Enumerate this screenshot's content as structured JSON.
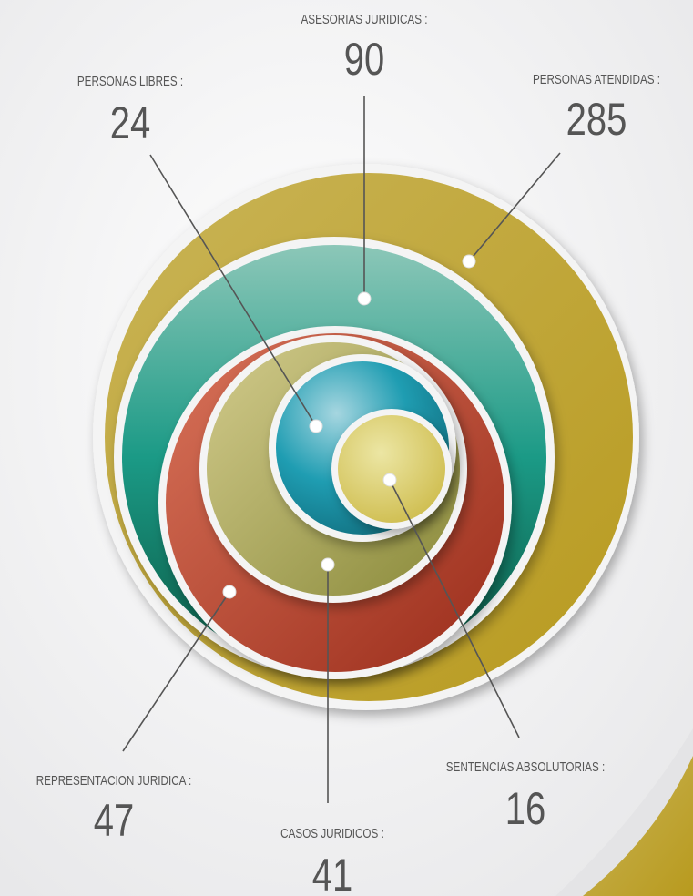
{
  "items": [
    {
      "label": "ASESORIAS JURIDICAS :",
      "value": 90
    },
    {
      "label": "PERSONAS LIBRES :",
      "value": 24
    },
    {
      "label": "PERSONAS ATENDIDAS :",
      "value": 285
    },
    {
      "label": "REPRESENTACION JURIDICA :",
      "value": 47
    },
    {
      "label": "CASOS JURIDICOS :",
      "value": 41
    },
    {
      "label": "SENTENCIAS ABSOLUTORIAS :",
      "value": 16
    }
  ]
}
